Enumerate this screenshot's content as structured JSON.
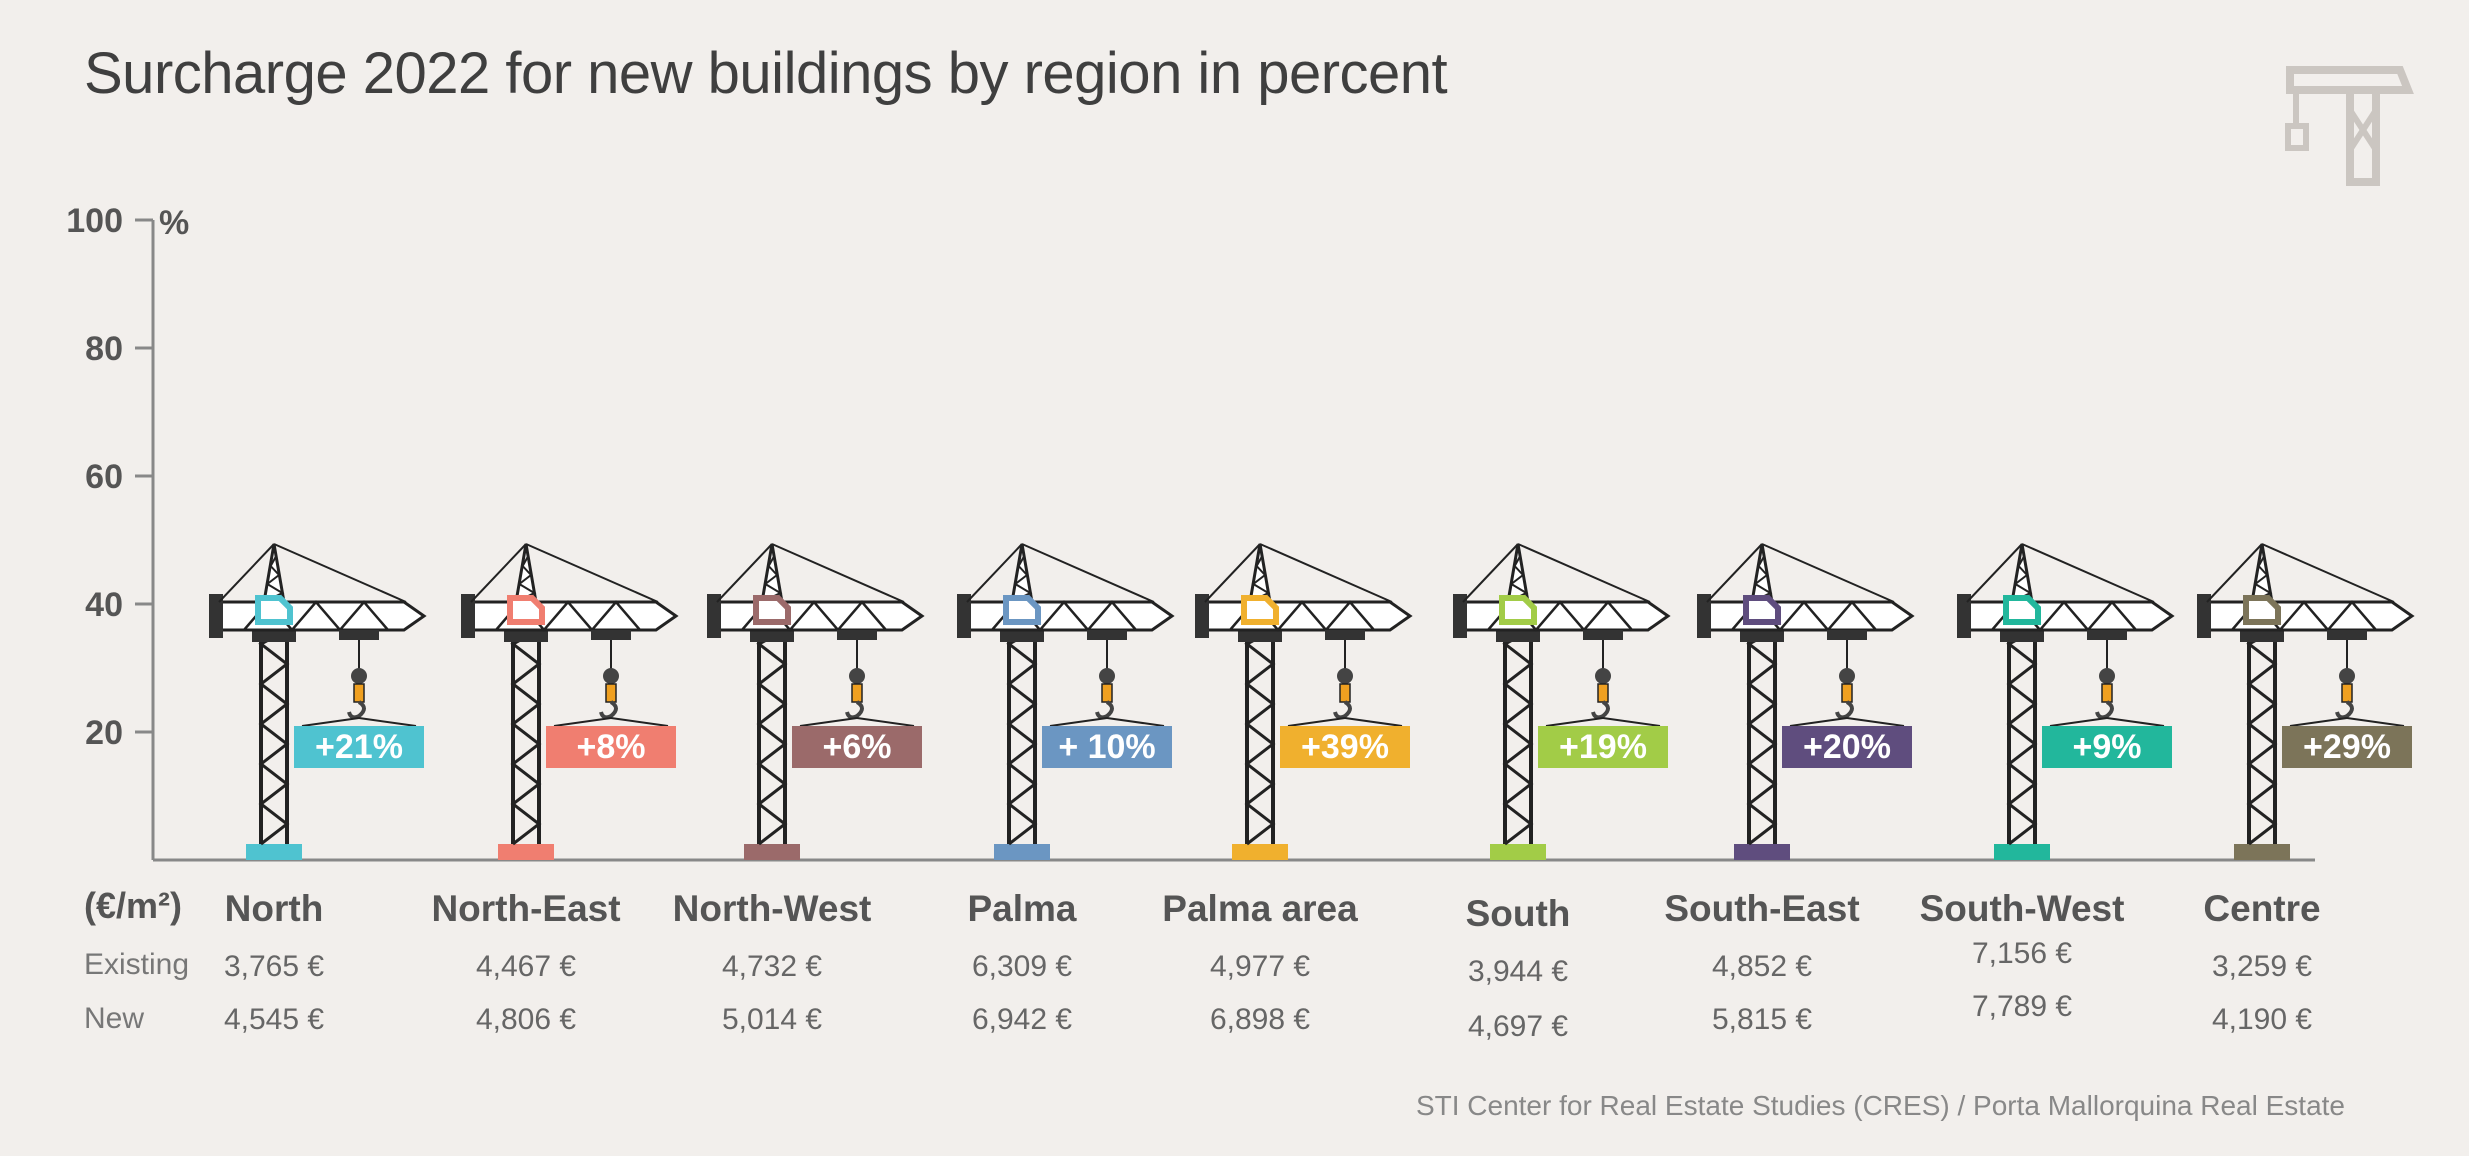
{
  "title": "Surcharge 2022 for new buildings by region in percent",
  "source": "STI Center for Real Estate Studies (CRES) / Porta Mallorquina Real Estate",
  "unit_label": "(€/m²)",
  "row_labels": {
    "existing": "Existing",
    "new": "New"
  },
  "chart_data": {
    "type": "bar",
    "ylim": [
      0,
      100
    ],
    "yticks": [
      "20",
      "40",
      "60",
      "80",
      "100"
    ],
    "yunit": "%",
    "categories": [
      "North",
      "North-East",
      "North-West",
      "Palma",
      "Palma area",
      "South",
      "South-East",
      "South-West",
      "Centre"
    ],
    "values": [
      21,
      8,
      6,
      10,
      39,
      19,
      20,
      9,
      29
    ],
    "value_labels": [
      "+21%",
      "+8%",
      "+6%",
      "+ 10%",
      "+39%",
      "+19%",
      "+20%",
      "+9%",
      "+29%"
    ],
    "existing": [
      "3,765 €",
      "4,467 €",
      "4,732 €",
      "6,309 €",
      "4,977 €",
      "3,944 €",
      "4,852 €",
      "7,156 €",
      "3,259 €"
    ],
    "new": [
      "4,545 €",
      "4,806 €",
      "5,014 €",
      "6,942 €",
      "6,898 €",
      "4,697 €",
      "5,815 €",
      "7,789 €",
      "4,190 €"
    ],
    "colors": [
      "#4fc3d0",
      "#f07e70",
      "#9b6a6a",
      "#6b96c2",
      "#f0b02e",
      "#a2cc47",
      "#5f4d7e",
      "#22b79c",
      "#7c7459"
    ]
  }
}
